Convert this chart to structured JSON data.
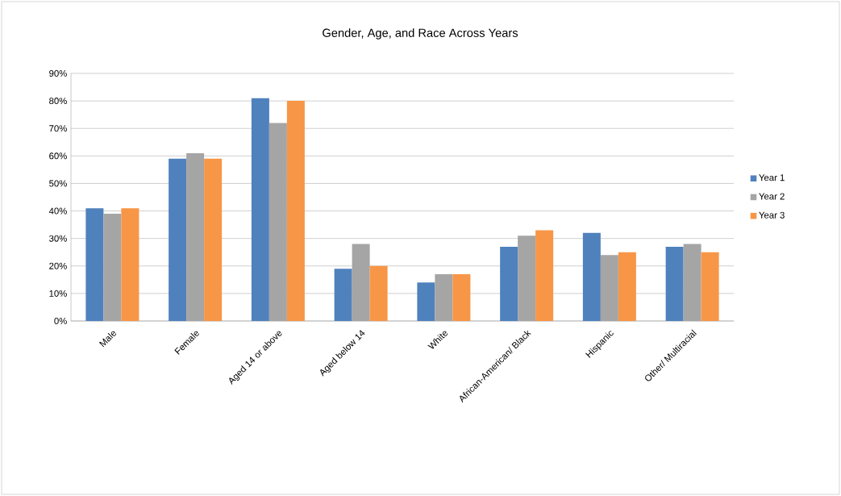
{
  "chart_data": {
    "type": "bar",
    "title": "Gender, Age, and Race Across Years",
    "categories": [
      "Male",
      "Female",
      "Aged 14 or above",
      "Aged below 14",
      "White",
      "African-American/ Black",
      "Hispanic",
      "Other/ Multiracial"
    ],
    "series": [
      {
        "name": "Year 1",
        "color": "#4f81bd",
        "values": [
          41,
          59,
          81,
          19,
          14,
          27,
          32,
          27
        ]
      },
      {
        "name": "Year 2",
        "color": "#a5a5a5",
        "values": [
          39,
          61,
          72,
          28,
          17,
          31,
          24,
          28
        ]
      },
      {
        "name": "Year 3",
        "color": "#f79646",
        "values": [
          41,
          59,
          80,
          20,
          17,
          33,
          25,
          25
        ]
      }
    ],
    "ylim": [
      0,
      90
    ],
    "yticks": [
      {
        "value": 0,
        "label": "0%"
      },
      {
        "value": 10,
        "label": "10%"
      },
      {
        "value": 20,
        "label": "20%"
      },
      {
        "value": 30,
        "label": "30%"
      },
      {
        "value": 40,
        "label": "40%"
      },
      {
        "value": 50,
        "label": "50%"
      },
      {
        "value": 60,
        "label": "60%"
      },
      {
        "value": 70,
        "label": "70%"
      },
      {
        "value": 80,
        "label": "80%"
      },
      {
        "value": 90,
        "label": "90%"
      }
    ],
    "grid": "y",
    "legend": "right"
  }
}
